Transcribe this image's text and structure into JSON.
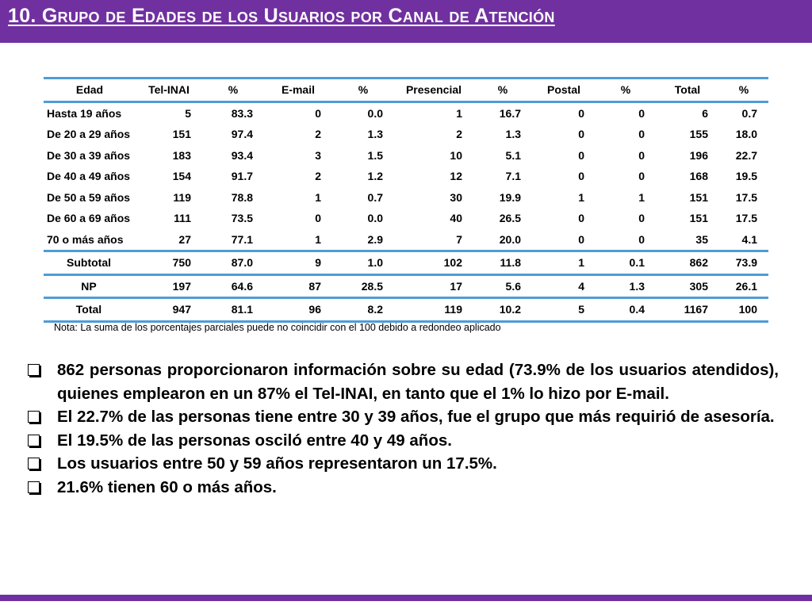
{
  "title": "10. Grupo de  Edades de los Usuarios por Canal de Atención",
  "table": {
    "headers": [
      "Edad",
      "Tel-INAI",
      "%",
      "E-mail",
      "%",
      "Presencial",
      "%",
      "Postal",
      "%",
      "Total",
      "%"
    ],
    "rows": [
      [
        "Hasta 19 años",
        "5",
        "83.3",
        "0",
        "0.0",
        "1",
        "16.7",
        "0",
        "0",
        "6",
        "0.7"
      ],
      [
        "De 20 a 29 años",
        "151",
        "97.4",
        "2",
        "1.3",
        "2",
        "1.3",
        "0",
        "0",
        "155",
        "18.0"
      ],
      [
        "De 30 a 39 años",
        "183",
        "93.4",
        "3",
        "1.5",
        "10",
        "5.1",
        "0",
        "0",
        "196",
        "22.7"
      ],
      [
        "De 40 a 49 años",
        "154",
        "91.7",
        "2",
        "1.2",
        "12",
        "7.1",
        "0",
        "0",
        "168",
        "19.5"
      ],
      [
        "De 50 a 59 años",
        "119",
        "78.8",
        "1",
        "0.7",
        "30",
        "19.9",
        "1",
        "1",
        "151",
        "17.5"
      ],
      [
        "De 60 a 69 años",
        "111",
        "73.5",
        "0",
        "0.0",
        "40",
        "26.5",
        "0",
        "0",
        "151",
        "17.5"
      ],
      [
        "70 o más años",
        "27",
        "77.1",
        "1",
        "2.9",
        "7",
        "20.0",
        "0",
        "0",
        "35",
        "4.1"
      ]
    ],
    "summary_rows": [
      [
        "Subtotal",
        "750",
        "87.0",
        "9",
        "1.0",
        "102",
        "11.8",
        "1",
        "0.1",
        "862",
        "73.9"
      ],
      [
        "NP",
        "197",
        "64.6",
        "87",
        "28.5",
        "17",
        "5.6",
        "4",
        "1.3",
        "305",
        "26.1"
      ],
      [
        "Total",
        "947",
        "81.1",
        "96",
        "8.2",
        "119",
        "10.2",
        "5",
        "0.4",
        "1167",
        "100"
      ]
    ]
  },
  "note": "Nota: La suma de los porcentajes parciales puede no coincidir con el 100 debido a redondeo aplicado",
  "bullets": [
    "862 personas proporcionaron información sobre su edad (73.9% de los usuarios atendidos), quienes emplearon en un 87% el Tel-INAI, en tanto que el 1% lo hizo por E-mail.",
    "El 22.7% de las personas tiene entre 30 y 39 años, fue el grupo que más requirió de asesoría.",
    "El 19.5% de las personas osciló entre 40 y 49 años.",
    "Los usuarios entre 50 y 59 años representaron un 17.5%.",
    "21.6% tienen 60 o más años."
  ],
  "colors": {
    "accent": "#7030a0",
    "rule": "#4f9cd6"
  }
}
